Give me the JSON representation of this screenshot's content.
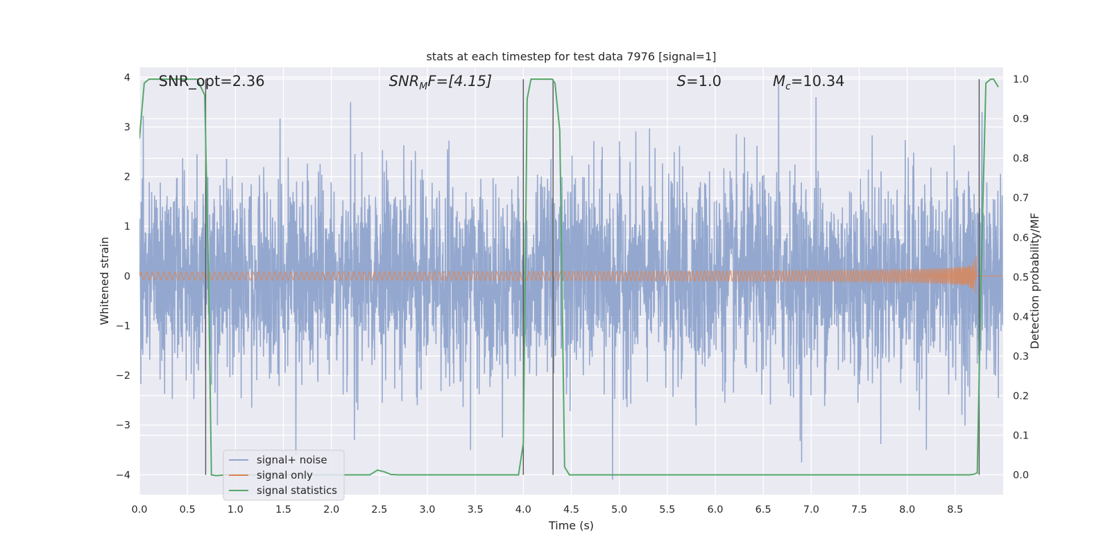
{
  "chart_data": {
    "type": "line",
    "title": "stats at each timestep for test data 7976 [signal=1]",
    "xlabel": "Time (s)",
    "ylabel": "Whitened strain",
    "y2label": "Detection probability/MF",
    "xlim": [
      0,
      9
    ],
    "ylim": [
      -4.4,
      4.2
    ],
    "y2lim": [
      -0.05,
      1.03
    ],
    "x_ticks": [
      "0.0",
      "0.5",
      "1.0",
      "1.5",
      "2.0",
      "2.5",
      "3.0",
      "3.5",
      "4.0",
      "4.5",
      "5.0",
      "5.5",
      "6.0",
      "6.5",
      "7.0",
      "7.5",
      "8.0",
      "8.5"
    ],
    "y_ticks": [
      "−4",
      "−3",
      "−2",
      "−1",
      "0",
      "1",
      "2",
      "3",
      "4"
    ],
    "y2_ticks": [
      "0.0",
      "0.1",
      "0.2",
      "0.3",
      "0.4",
      "0.5",
      "0.6",
      "0.7",
      "0.8",
      "0.9",
      "1.0"
    ],
    "grid": true,
    "legend_position": "bottom-left",
    "annotations": [
      {
        "label": "SNR_opt=2.36",
        "x": 0.2
      },
      {
        "label": "SNR",
        "sub": "M",
        "suffix": "F=[4.15]",
        "x": 2.6
      },
      {
        "label": "S",
        "suffix": "=1.0",
        "x": 5.6
      },
      {
        "label": "M",
        "sub": "c",
        "suffix": "=10.34",
        "x": 6.6
      }
    ],
    "vlines": [
      0.69,
      4.0,
      4.31,
      8.75
    ],
    "series": [
      {
        "name": "signal+ noise",
        "color": "#8fa4cc",
        "kind": "noise",
        "spread": 1.0,
        "peaks": [
          [
            1.63,
            -3.6
          ],
          [
            2.2,
            3.5
          ],
          [
            2.24,
            -3.3
          ],
          [
            3.45,
            -3.5
          ],
          [
            4.93,
            -4.1
          ],
          [
            6.66,
            3.9
          ],
          [
            6.9,
            -3.75
          ],
          [
            7.05,
            3.6
          ],
          [
            8.2,
            -3.5
          ],
          [
            8.78,
            3.3
          ]
        ]
      },
      {
        "name": "signal only",
        "color": "#dd8452",
        "kind": "chirp",
        "amplitude_end": 0.45,
        "t_merge": 8.72
      },
      {
        "name": "signal statistics",
        "color": "#55a868",
        "axis": "right",
        "x": [
          0.0,
          0.05,
          0.1,
          0.3,
          0.5,
          0.6,
          0.68,
          0.72,
          0.75,
          0.8,
          0.9,
          2.3,
          2.4,
          2.48,
          2.55,
          2.62,
          2.7,
          3.9,
          3.95,
          4.0,
          4.04,
          4.08,
          4.3,
          4.33,
          4.38,
          4.43,
          4.48,
          8.65,
          8.7,
          8.73,
          8.77,
          8.82,
          8.87,
          8.9,
          8.95
        ],
        "y": [
          0.85,
          0.99,
          1.0,
          1.0,
          1.0,
          1.0,
          0.96,
          0.5,
          0.0,
          -0.002,
          0.0,
          0.0,
          0.0,
          0.012,
          0.008,
          0.001,
          0.0,
          0.0,
          0.0,
          0.08,
          0.95,
          1.0,
          1.0,
          0.99,
          0.87,
          0.02,
          0.0,
          0.0,
          0.002,
          0.005,
          0.5,
          0.99,
          1.0,
          1.0,
          0.98
        ]
      }
    ]
  }
}
